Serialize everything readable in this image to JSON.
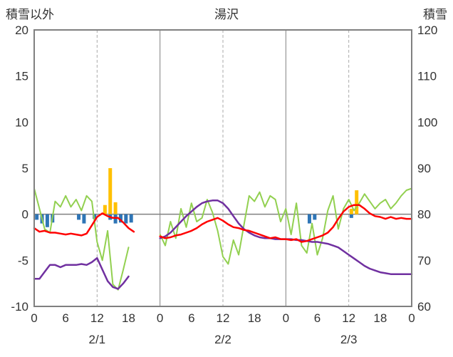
{
  "header": {
    "left_label": "積雪以外",
    "title": "湯沢",
    "right_label": "積雪"
  },
  "chart_data": {
    "type": "line",
    "title": "湯沢",
    "left_axis": {
      "label": "積雪以外",
      "min": -10,
      "max": 20,
      "ticks": [
        20,
        15,
        10,
        5,
        0,
        -5,
        -10
      ]
    },
    "right_axis": {
      "label": "積雪",
      "min": 60,
      "max": 120,
      "ticks": [
        120,
        110,
        100,
        90,
        80,
        70,
        60
      ]
    },
    "x_axis": {
      "total_hours": 72,
      "tick_step": 6,
      "tick_labels": [
        "0",
        "6",
        "12",
        "18",
        "0",
        "6",
        "12",
        "18",
        "0",
        "6",
        "12",
        "18",
        "0"
      ],
      "day_labels": [
        "2/1",
        "2/2",
        "2/3"
      ],
      "day_label_hours": [
        12,
        36,
        60
      ],
      "solid_gridline_hours": [
        24,
        48
      ],
      "dashed_gridline_hours": [
        12,
        36,
        60
      ]
    },
    "colors": {
      "red": "#ff0000",
      "green": "#92d050",
      "purple": "#7030a0",
      "blue": "#2e75b6",
      "orange": "#ffc000",
      "frame": "#808080",
      "dashed_grid": "#aaaaaa",
      "text": "#333333"
    },
    "series": [
      {
        "name": "blue-bars",
        "kind": "bar",
        "axis": "left",
        "color": "#2e75b6",
        "values": [
          -0.6,
          -1.0,
          -1.4,
          -0.9,
          0,
          0,
          0,
          0,
          -0.6,
          -1.0,
          0,
          -0.5,
          0,
          0,
          -0.6,
          -1.0,
          -0.9,
          -1.0,
          -0.9,
          0,
          0,
          0,
          0,
          0,
          0,
          0,
          0,
          0,
          0,
          0,
          0,
          0,
          0,
          0,
          0,
          0,
          0,
          0,
          0,
          0,
          0,
          0,
          0,
          0,
          0,
          0,
          0,
          0,
          0,
          0,
          0,
          0,
          -1.0,
          -0.6,
          0,
          0,
          0,
          0,
          0,
          0,
          -0.4,
          0,
          0,
          0,
          0,
          0,
          0,
          0,
          0,
          0,
          0,
          0
        ]
      },
      {
        "name": "orange-bars",
        "kind": "bar",
        "axis": "left",
        "color": "#ffc000",
        "values": [
          0,
          0,
          0,
          0,
          0,
          0,
          0,
          0,
          0,
          0,
          0,
          0,
          0,
          1.0,
          5.0,
          1.3,
          0,
          0,
          0,
          0,
          0,
          0,
          0,
          0,
          0,
          0,
          0,
          0,
          0,
          0,
          0,
          0,
          0,
          0,
          0,
          0,
          0,
          0,
          0,
          0,
          0,
          0,
          0,
          0,
          0,
          0,
          0,
          0,
          0,
          0,
          0,
          0,
          0,
          0,
          0,
          0,
          0,
          0,
          0,
          0,
          0.6,
          2.6,
          0,
          0,
          0,
          0,
          0,
          0,
          0,
          0,
          0,
          0
        ]
      },
      {
        "name": "green-line",
        "kind": "line",
        "axis": "left",
        "color": "#92d050",
        "width": 2,
        "values": [
          2.8,
          0.6,
          -1.6,
          -2.0,
          1.4,
          0.8,
          2.0,
          0.8,
          1.6,
          0.4,
          2.0,
          1.4,
          -3.0,
          -5.0,
          -1.8,
          -7.6,
          -8.2,
          -6.0,
          -3.6,
          null,
          null,
          null,
          null,
          null,
          -2.2,
          -3.4,
          -0.8,
          -2.6,
          0.6,
          -1.4,
          1.2,
          -0.8,
          -0.4,
          1.6,
          0.2,
          -1.8,
          -4.6,
          -5.4,
          -2.8,
          -4.4,
          -1.2,
          2.0,
          1.4,
          2.4,
          0.8,
          2.0,
          1.6,
          -0.8,
          0.6,
          -2.2,
          1.2,
          -3.4,
          -4.2,
          -1.0,
          -4.4,
          -2.6,
          0.4,
          2.0,
          -1.6,
          0.6,
          1.6,
          0.4,
          1.2,
          2.2,
          1.4,
          0.6,
          1.2,
          1.6,
          0.6,
          1.2,
          2.0,
          2.6,
          2.8
        ]
      },
      {
        "name": "purple-line",
        "kind": "line",
        "axis": "right",
        "color": "#7030a0",
        "width": 2.5,
        "values": [
          66,
          66,
          67.5,
          69,
          69,
          68.5,
          69,
          69,
          69,
          69.2,
          69,
          69.6,
          70.5,
          68,
          65.5,
          64.2,
          63.8,
          65,
          66.5,
          null,
          null,
          null,
          null,
          null,
          74.8,
          75.2,
          76,
          77.2,
          78.4,
          79.6,
          80.6,
          81.6,
          82.4,
          82.8,
          83,
          83,
          82.4,
          81.2,
          79.6,
          78,
          76.8,
          76,
          75.4,
          75,
          74.8,
          74.8,
          74.6,
          74.6,
          74.6,
          74.6,
          74.4,
          74.4,
          74.2,
          74,
          74,
          73.8,
          73.6,
          73.2,
          72.8,
          72,
          71.2,
          70.4,
          69.6,
          68.8,
          68.2,
          67.8,
          67.4,
          67.2,
          67,
          67,
          67,
          67,
          67
        ]
      },
      {
        "name": "red-line",
        "kind": "line",
        "axis": "left",
        "color": "#ff0000",
        "width": 2.5,
        "values": [
          -1.5,
          -1.9,
          -1.8,
          -2.0,
          -2.0,
          -2.1,
          -2.2,
          -2.1,
          -2.2,
          -2.3,
          -2.1,
          -1.2,
          -0.3,
          0.1,
          -0.2,
          -0.4,
          -0.4,
          -0.9,
          -1.5,
          -1.9,
          null,
          null,
          null,
          null,
          -2.4,
          -2.6,
          -2.5,
          -2.3,
          -2.2,
          -2.0,
          -1.8,
          -1.5,
          -1.1,
          -0.8,
          -0.6,
          -0.4,
          -0.7,
          -1.1,
          -1.4,
          -1.5,
          -1.7,
          -1.8,
          -2.0,
          -2.2,
          -2.4,
          -2.6,
          -2.5,
          -2.7,
          -2.7,
          -2.8,
          -2.7,
          -3.0,
          -2.9,
          -2.7,
          -2.5,
          -2.3,
          -2.0,
          -1.4,
          -0.5,
          0.3,
          0.8,
          1.0,
          1.0,
          0.6,
          0.1,
          -0.2,
          -0.3,
          -0.5,
          -0.3,
          -0.5,
          -0.4,
          -0.5,
          -0.5
        ]
      }
    ]
  }
}
